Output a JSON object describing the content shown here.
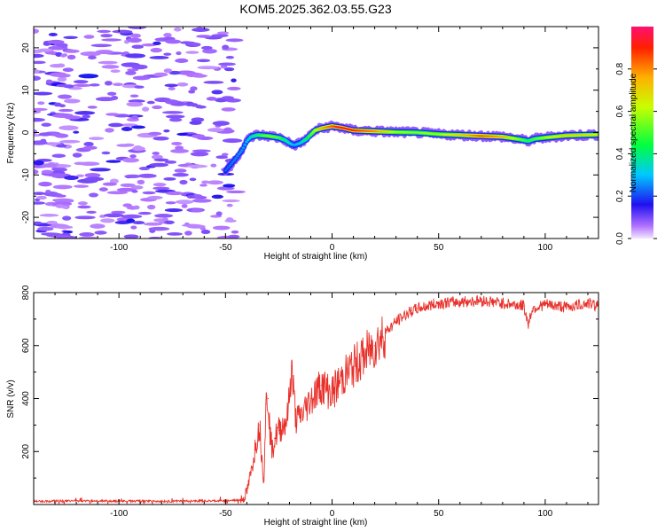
{
  "title": "KOM5.2025.362.03.55.G23",
  "chart_data": [
    {
      "type": "heatmap",
      "xlabel": "Height of straight line (km)",
      "ylabel": "Frequency (Hz)",
      "xlim": [
        -140,
        125
      ],
      "ylim": [
        -25,
        25
      ],
      "xticks": [
        -100,
        -50,
        0,
        50,
        100
      ],
      "xtick_labels": [
        "-100",
        "-50",
        "0",
        "50",
        "100"
      ],
      "yticks": [
        -20,
        -10,
        0,
        10,
        20
      ],
      "ytick_labels": [
        "-20",
        "-10",
        "0",
        "10",
        "20"
      ],
      "colorbar": {
        "label": "Normalized spectral amplitude",
        "range": [
          0,
          1
        ],
        "ticks": [
          0,
          0.2,
          0.4,
          0.6,
          0.8
        ],
        "tick_labels": [
          "0.0",
          "0.2",
          "0.4",
          "0.6",
          "0.8"
        ]
      },
      "noise_region_x": [
        -140,
        -45
      ],
      "trace": {
        "x": [
          -50,
          -45,
          -42,
          -40,
          -38,
          -35,
          -30,
          -25,
          -22,
          -20,
          -18,
          -15,
          -12,
          -10,
          -8,
          -5,
          0,
          5,
          10,
          20,
          30,
          40,
          50,
          60,
          70,
          80,
          88,
          92,
          95,
          100,
          110,
          125
        ],
        "freq": [
          -9,
          -6,
          -4,
          -2,
          -1,
          -0.6,
          -0.8,
          -1.2,
          -1.8,
          -2.5,
          -3,
          -2.5,
          -1.5,
          -0.5,
          0.5,
          1,
          1.5,
          1.1,
          0.5,
          0.3,
          0.1,
          0,
          -0.4,
          -0.6,
          -0.8,
          -1,
          -1.6,
          -2,
          -1.5,
          -1.2,
          -0.7,
          -0.5
        ],
        "amplitude": [
          0.22,
          0.25,
          0.27,
          0.3,
          0.35,
          0.45,
          0.55,
          0.5,
          0.4,
          0.35,
          0.28,
          0.32,
          0.42,
          0.5,
          0.6,
          0.75,
          0.85,
          0.95,
          0.9,
          0.8,
          0.6,
          0.55,
          0.6,
          0.7,
          0.85,
          0.75,
          0.55,
          0.45,
          0.5,
          0.6,
          0.7,
          0.65
        ]
      }
    },
    {
      "type": "line",
      "xlabel": "Height of straight line (km)",
      "ylabel": "SNR (v/v)",
      "xlim": [
        -140,
        125
      ],
      "ylim": [
        0,
        800
      ],
      "xticks": [
        -100,
        -50,
        0,
        50,
        100
      ],
      "xtick_labels": [
        "-100",
        "-50",
        "0",
        "50",
        "100"
      ],
      "yticks": [
        200,
        400,
        600,
        800
      ],
      "ytick_labels": [
        "200",
        "400",
        "600",
        "800"
      ],
      "color": "#e8302a",
      "series": [
        {
          "name": "SNR",
          "x": [
            -140,
            -120,
            -100,
            -80,
            -60,
            -50,
            -45,
            -42,
            -40,
            -38,
            -36,
            -34,
            -33,
            -32,
            -31,
            -30,
            -29,
            -28,
            -27,
            -25,
            -23,
            -21,
            -20,
            -19,
            -18,
            -17,
            -15,
            -12,
            -10,
            -5,
            0,
            5,
            10,
            15,
            20,
            25,
            30,
            35,
            40,
            50,
            60,
            70,
            80,
            90,
            92,
            94,
            100,
            110,
            120,
            125
          ],
          "values": [
            12,
            14,
            13,
            12,
            13,
            14,
            16,
            20,
            45,
            120,
            220,
            300,
            180,
            100,
            380,
            400,
            260,
            200,
            250,
            280,
            300,
            330,
            410,
            520,
            420,
            320,
            330,
            370,
            400,
            450,
            420,
            480,
            520,
            560,
            600,
            650,
            690,
            720,
            740,
            760,
            765,
            770,
            760,
            750,
            680,
            740,
            755,
            745,
            760,
            750
          ]
        }
      ]
    }
  ]
}
